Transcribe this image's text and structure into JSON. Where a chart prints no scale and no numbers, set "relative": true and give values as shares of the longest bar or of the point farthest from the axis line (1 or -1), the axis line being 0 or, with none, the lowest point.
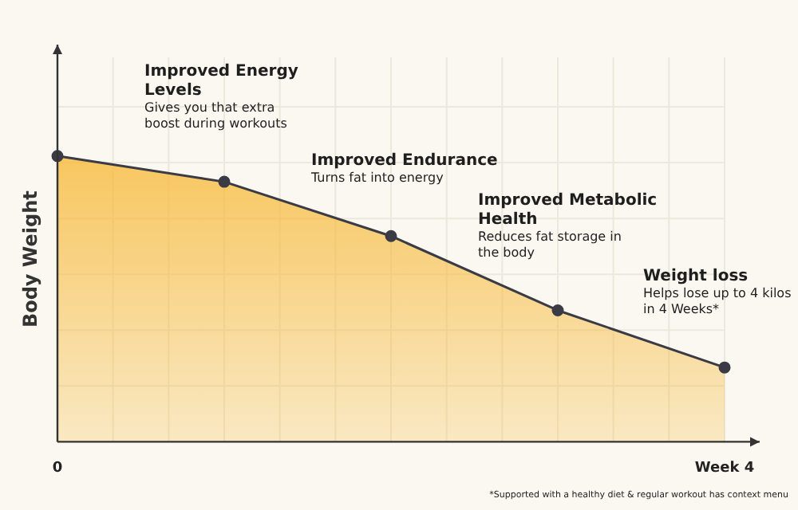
{
  "chart_data": {
    "type": "area",
    "relative": true,
    "ylabel": "Body Weight",
    "categories": [
      "0",
      null,
      null,
      null,
      "Week 4"
    ],
    "grid": true,
    "marker": "circle",
    "legend": false,
    "series": [
      {
        "color": "#f7b938",
        "values": [
          1,
          0.91,
          0.72,
          0.46,
          0.26
        ]
      }
    ],
    "annotations": [
      "Improved Energy Levels\nGives you that extra boost during workouts",
      "Improved Endurance\nTurns fat into energy",
      "Improved Metabolic Health\nReduces fat storage in the body",
      "Weight loss\nHelps lose up to 4 kilos  in 4 Weeks*",
      "*Supported with a healthy diet & regular workout has context menu"
    ]
  }
}
